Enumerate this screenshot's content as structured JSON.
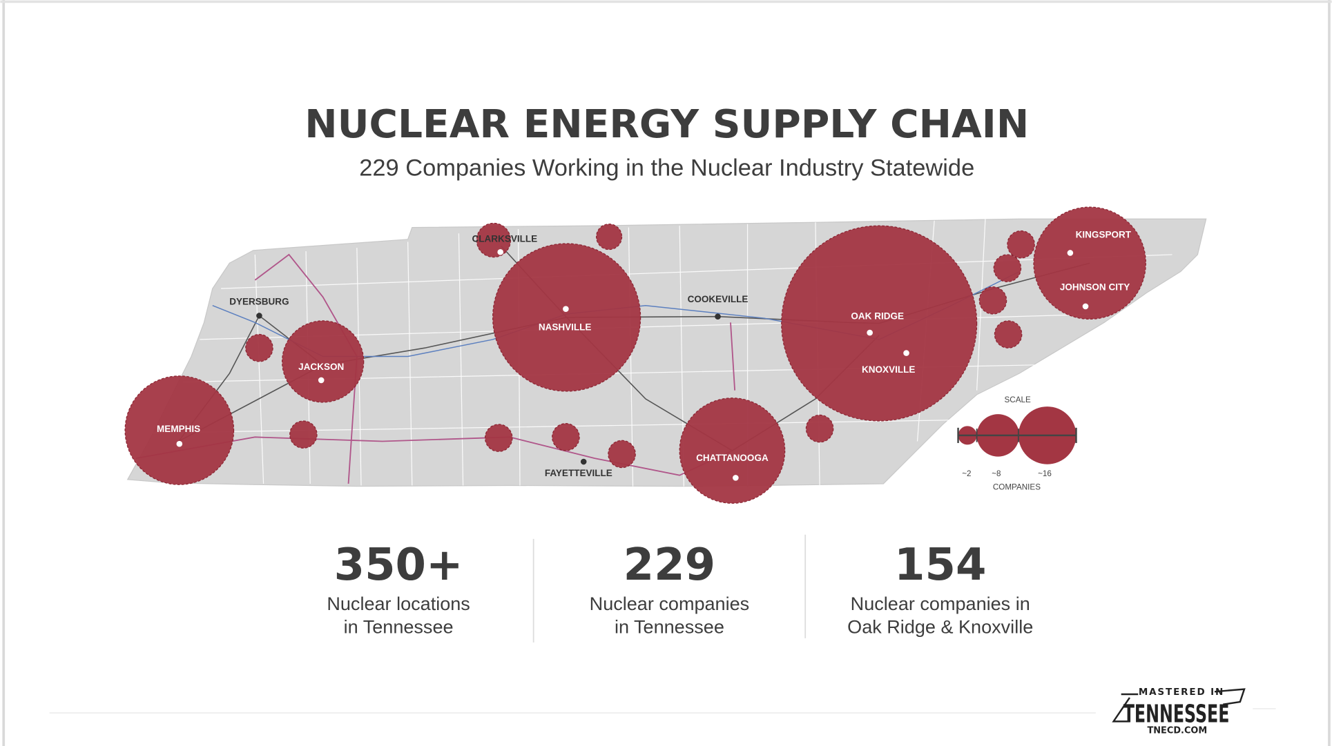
{
  "header": {
    "title": "NUCLEAR ENERGY SUPPLY CHAIN",
    "subtitle": "229 Companies Working in the Nuclear Industry Statewide"
  },
  "map": {
    "bubble_color": "#a33643",
    "state_fill": "#d6d6d6",
    "cities": {
      "memphis": "MEMPHIS",
      "jackson": "JACKSON",
      "dyersburg": "DYERSBURG",
      "clarksville": "CLARKSVILLE",
      "nashville": "NASHVILLE",
      "cookeville": "COOKEVILLE",
      "fayetteville": "FAYETTEVILLE",
      "chattanooga": "CHATTANOOGA",
      "oak_ridge": "OAK RIDGE",
      "knoxville": "KNOXVILLE",
      "kingsport": "KINGSPORT",
      "johnson_city": "JOHNSON CITY"
    },
    "scale": {
      "title": "SCALE",
      "values": [
        "~2",
        "~8",
        "~16"
      ],
      "unit": "COMPANIES"
    }
  },
  "stats": [
    {
      "value": "350+",
      "line1": "Nuclear locations",
      "line2": "in Tennessee"
    },
    {
      "value": "229",
      "line1": "Nuclear companies",
      "line2": "in Tennessee"
    },
    {
      "value": "154",
      "line1": "Nuclear companies in",
      "line2": "Oak Ridge & Knoxville"
    }
  ],
  "footer": {
    "logo_top": "MASTERED IN",
    "logo_main": "TENNESSEE",
    "logo_url": "TNECD.COM"
  }
}
